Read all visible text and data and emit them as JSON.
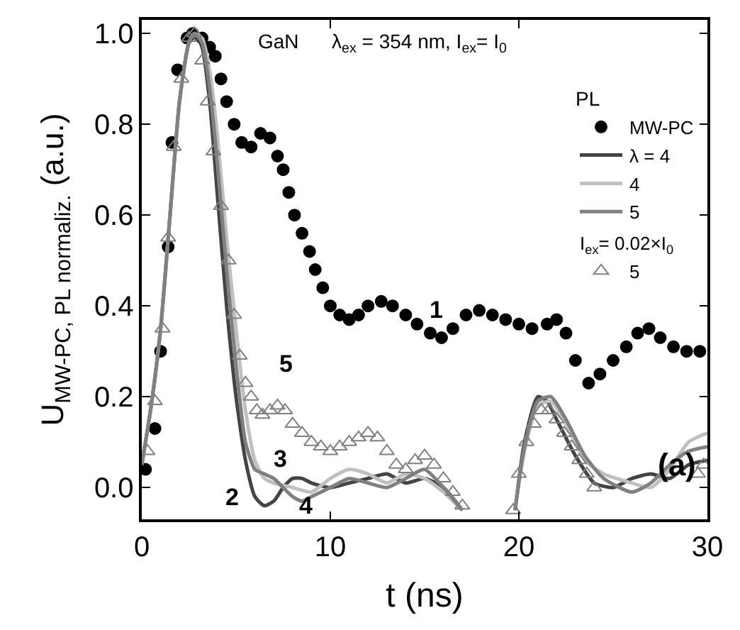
{
  "chart_data": {
    "type": "line",
    "xlabel": "t (ns)",
    "ylabel": "U$_{MW-PC, PL normaliz.}$ (a.u.)",
    "xlim": [
      0,
      30
    ],
    "xticks": [
      0,
      10,
      20,
      30
    ],
    "ylim": [
      -0.07,
      1.03
    ],
    "yticks": [
      {
        "value": 0,
        "label": "0.0"
      },
      {
        "value": 0.2,
        "label": "0.2"
      },
      {
        "value": 0.4,
        "label": "0.4"
      },
      {
        "value": 0.6,
        "label": "0.6"
      },
      {
        "value": 0.8,
        "label": "0.8"
      },
      {
        "value": 1,
        "label": "1.0"
      }
    ],
    "legend": "top right",
    "legend_title": "PL",
    "series": [
      {
        "name": "MW-PC",
        "type": "scatter",
        "marker": "circle",
        "color": "#000000",
        "x": [
          0.2,
          0.7,
          1.0,
          1.4,
          1.6,
          1.9,
          2.4,
          2.7,
          3.2,
          3.6,
          3.9,
          4.2,
          4.5,
          4.9,
          5.3,
          5.8,
          6.3,
          6.8,
          7.2,
          7.5,
          7.8,
          8.1,
          8.5,
          8.9,
          9.2,
          9.6,
          10.0,
          10.5,
          11.0,
          11.5,
          12.0,
          12.7,
          13.3,
          14.0,
          14.6,
          15.3,
          15.9,
          16.5,
          17.2,
          17.9,
          18.6,
          19.3,
          20.0,
          20.7,
          21.5,
          22.0,
          22.5,
          23.0,
          23.7,
          24.3,
          25.0,
          25.7,
          26.3,
          26.9,
          27.5,
          28.2,
          28.9,
          29.6
        ],
        "values": [
          0.04,
          0.13,
          0.3,
          0.53,
          0.76,
          0.92,
          0.99,
          1.0,
          0.99,
          0.97,
          0.95,
          0.9,
          0.85,
          0.8,
          0.76,
          0.75,
          0.78,
          0.77,
          0.73,
          0.7,
          0.65,
          0.6,
          0.56,
          0.52,
          0.48,
          0.44,
          0.4,
          0.38,
          0.37,
          0.38,
          0.4,
          0.41,
          0.4,
          0.38,
          0.36,
          0.34,
          0.33,
          0.35,
          0.38,
          0.39,
          0.38,
          0.37,
          0.36,
          0.35,
          0.36,
          0.37,
          0.34,
          0.28,
          0.23,
          0.25,
          0.28,
          0.31,
          0.34,
          0.35,
          0.33,
          0.31,
          0.3,
          0.3
        ]
      },
      {
        "name": "λ = 4",
        "marker": "none",
        "color": "#444444",
        "x": [
          0,
          0.5,
          1,
          1.5,
          2,
          2.5,
          2.8,
          3.2,
          3.6,
          4,
          4.5,
          5,
          5.5,
          6,
          6.5,
          7,
          7.5,
          8,
          8.5,
          9,
          10,
          11,
          12,
          13,
          14,
          15,
          16,
          17,
          18,
          19,
          19.8,
          20.3,
          21,
          21.5,
          22,
          23,
          24,
          25,
          26,
          27,
          28,
          29,
          30
        ],
        "values": [
          0.05,
          0.18,
          0.35,
          0.6,
          0.85,
          0.98,
          1.0,
          0.97,
          0.85,
          0.65,
          0.4,
          0.2,
          0.06,
          -0.02,
          -0.04,
          -0.03,
          0.0,
          0.02,
          0.02,
          0.01,
          0.0,
          0.01,
          0.02,
          0.03,
          0.01,
          0.02,
          0.0,
          -0.05,
          null,
          null,
          -0.05,
          0.1,
          0.2,
          0.19,
          0.15,
          0.07,
          0.01,
          0.0,
          0.02,
          0.03,
          0.02,
          0.05,
          0.06
        ]
      },
      {
        "name": "4",
        "marker": "none",
        "color": "#c0c0c0",
        "x": [
          0,
          0.5,
          1,
          1.5,
          2,
          2.5,
          2.8,
          3.2,
          3.6,
          4,
          4.5,
          5,
          5.5,
          6,
          6.5,
          7,
          8,
          9,
          10,
          11,
          12,
          13,
          14,
          15,
          16,
          17,
          18,
          19,
          19.8,
          20.3,
          21,
          21.7,
          22.5,
          23.5,
          24.5,
          26,
          27,
          28,
          29,
          30
        ],
        "values": [
          0.05,
          0.18,
          0.35,
          0.6,
          0.85,
          0.98,
          1.0,
          0.99,
          0.92,
          0.78,
          0.55,
          0.35,
          0.17,
          0.06,
          0.02,
          0.01,
          0.0,
          -0.01,
          0.02,
          0.04,
          0.03,
          0.01,
          0.03,
          0.02,
          -0.01,
          -0.05,
          null,
          null,
          -0.04,
          0.08,
          0.18,
          0.19,
          0.14,
          0.06,
          0.03,
          0.01,
          0.0,
          0.04,
          0.1,
          0.12
        ]
      },
      {
        "name": "5",
        "marker": "none",
        "color": "#808080",
        "x": [
          0,
          0.5,
          1,
          1.5,
          2,
          2.5,
          2.8,
          3.2,
          3.6,
          4,
          4.5,
          5,
          5.5,
          6,
          6.5,
          7,
          8,
          8.5,
          9,
          10,
          11,
          12,
          13,
          14,
          15,
          16,
          17,
          18,
          19,
          19.8,
          20.3,
          21,
          21.7,
          22.5,
          23.5,
          24.5,
          26,
          27,
          28,
          29,
          30
        ],
        "values": [
          0.05,
          0.18,
          0.35,
          0.6,
          0.85,
          0.98,
          1.0,
          0.98,
          0.88,
          0.72,
          0.48,
          0.27,
          0.1,
          0.04,
          0.03,
          0.02,
          -0.02,
          -0.03,
          -0.02,
          0.0,
          0.02,
          0.01,
          0.0,
          0.02,
          0.04,
          0.0,
          -0.05,
          null,
          null,
          -0.05,
          0.09,
          0.19,
          0.2,
          0.15,
          0.07,
          0.02,
          -0.01,
          0.01,
          0.05,
          0.08,
          0.09
        ]
      },
      {
        "name": "5",
        "type": "scatter",
        "marker": "triangle",
        "color": "#808080",
        "x": [
          0.3,
          0.7,
          1.1,
          1.4,
          1.7,
          2.1,
          2.5,
          2.8,
          3.2,
          3.5,
          3.8,
          4.2,
          4.6,
          4.9,
          5.2,
          5.5,
          5.8,
          6.1,
          6.4,
          6.8,
          7.2,
          7.6,
          8,
          8.5,
          9,
          9.5,
          10,
          10.5,
          11,
          11.5,
          12,
          12.5,
          13,
          13.5,
          14,
          14.5,
          15,
          15.5,
          16,
          16.5,
          17,
          19.7,
          20,
          20.4,
          20.8,
          21.2,
          21.6,
          22,
          22.4,
          22.8,
          23.2,
          23.6,
          24,
          29.5,
          29.8
        ],
        "values": [
          0.08,
          0.19,
          0.35,
          0.55,
          0.75,
          0.9,
          0.99,
          1.0,
          0.94,
          0.85,
          0.74,
          0.62,
          0.5,
          0.38,
          0.29,
          0.23,
          0.2,
          0.17,
          0.16,
          0.17,
          0.18,
          0.17,
          0.14,
          0.12,
          0.1,
          0.09,
          0.08,
          0.09,
          0.1,
          0.11,
          0.12,
          0.11,
          0.08,
          0.05,
          0.04,
          0.06,
          0.07,
          0.05,
          0.02,
          -0.01,
          -0.04,
          -0.05,
          0.03,
          0.1,
          0.14,
          0.17,
          0.17,
          0.15,
          0.12,
          0.09,
          0.06,
          0.03,
          0.0,
          0.03,
          0.05
        ]
      }
    ],
    "annotations": [
      "1",
      "2",
      "3",
      "4",
      "5",
      "(a)",
      "GaN",
      "λ$_{ex}$ = 354 nm, I$_{ex}$= I$_{0}$",
      "I$_{ex}$= 0.02×I$_{0}$"
    ]
  }
}
